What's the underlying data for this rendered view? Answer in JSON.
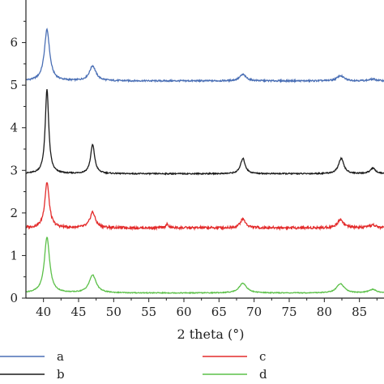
{
  "chart_data": {
    "type": "line",
    "xlabel": "2 theta (°)",
    "ylabel": "",
    "xlim": [
      37.5,
      88.5
    ],
    "ylim": [
      0,
      7
    ],
    "x_ticks": [
      40,
      45,
      50,
      55,
      60,
      65,
      70,
      75,
      80,
      85
    ],
    "y_ticks": [
      0,
      1,
      2,
      3,
      4,
      5,
      6
    ],
    "grid": false,
    "legend_position": "bottom",
    "series": [
      {
        "name": "a",
        "color": "#4a6fb5",
        "baseline": 5.1,
        "peaks": [
          {
            "x": 40.5,
            "y": 6.3,
            "width": 0.45
          },
          {
            "x": 47.0,
            "y": 5.45,
            "width": 0.55
          },
          {
            "x": 68.4,
            "y": 5.25,
            "width": 0.55
          },
          {
            "x": 82.3,
            "y": 5.22,
            "width": 0.6
          },
          {
            "x": 86.9,
            "y": 5.14,
            "width": 0.6
          }
        ]
      },
      {
        "name": "b",
        "color": "#1a1a1a",
        "baseline": 2.92,
        "peaks": [
          {
            "x": 40.5,
            "y": 4.9,
            "width": 0.3
          },
          {
            "x": 47.0,
            "y": 3.6,
            "width": 0.35
          },
          {
            "x": 68.4,
            "y": 3.28,
            "width": 0.4
          },
          {
            "x": 82.4,
            "y": 3.28,
            "width": 0.45
          },
          {
            "x": 86.9,
            "y": 3.05,
            "width": 0.45
          }
        ]
      },
      {
        "name": "c",
        "color": "#e32b2b",
        "baseline": 1.65,
        "peaks": [
          {
            "x": 40.5,
            "y": 2.72,
            "width": 0.38
          },
          {
            "x": 47.0,
            "y": 2.02,
            "width": 0.45
          },
          {
            "x": 57.6,
            "y": 1.73,
            "width": 0.25
          },
          {
            "x": 68.4,
            "y": 1.86,
            "width": 0.45
          },
          {
            "x": 82.3,
            "y": 1.85,
            "width": 0.5
          },
          {
            "x": 86.9,
            "y": 1.72,
            "width": 0.5
          }
        ]
      },
      {
        "name": "d",
        "color": "#5cc049",
        "baseline": 0.12,
        "peaks": [
          {
            "x": 40.5,
            "y": 1.43,
            "width": 0.45
          },
          {
            "x": 47.0,
            "y": 0.54,
            "width": 0.6
          },
          {
            "x": 68.4,
            "y": 0.35,
            "width": 0.65
          },
          {
            "x": 82.3,
            "y": 0.34,
            "width": 0.65
          },
          {
            "x": 86.9,
            "y": 0.2,
            "width": 0.65
          }
        ]
      }
    ]
  }
}
